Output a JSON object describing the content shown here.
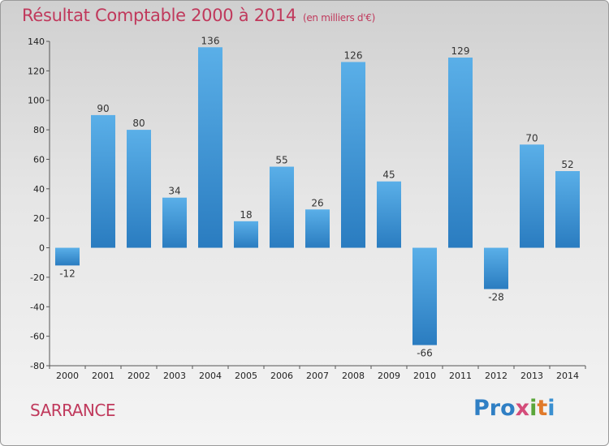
{
  "header": {
    "title": "Résultat Comptable 2000 à 2014",
    "subtitle": "(en milliers d'€)"
  },
  "footer": {
    "city": "SARRANCE",
    "logo": [
      "Pro",
      "x",
      "i",
      "t",
      "i"
    ]
  },
  "colors": {
    "title": "#c0395c",
    "bar_light": "#5aafe8",
    "bar_dark": "#2a7cc0"
  },
  "chart_data": {
    "type": "bar",
    "title": "Résultat Comptable 2000 à 2014",
    "subtitle": "(en milliers d'€)",
    "xlabel": "",
    "ylabel": "",
    "categories": [
      "2000",
      "2001",
      "2002",
      "2003",
      "2004",
      "2005",
      "2006",
      "2007",
      "2008",
      "2009",
      "2010",
      "2011",
      "2012",
      "2013",
      "2014"
    ],
    "values": [
      -12,
      90,
      80,
      34,
      136,
      18,
      55,
      26,
      126,
      45,
      -66,
      129,
      -28,
      70,
      52
    ],
    "ylim": [
      -80,
      140
    ],
    "yticks": [
      -80,
      -60,
      -40,
      -20,
      0,
      20,
      40,
      60,
      80,
      100,
      120,
      140
    ],
    "grid": false,
    "legend": "none"
  }
}
